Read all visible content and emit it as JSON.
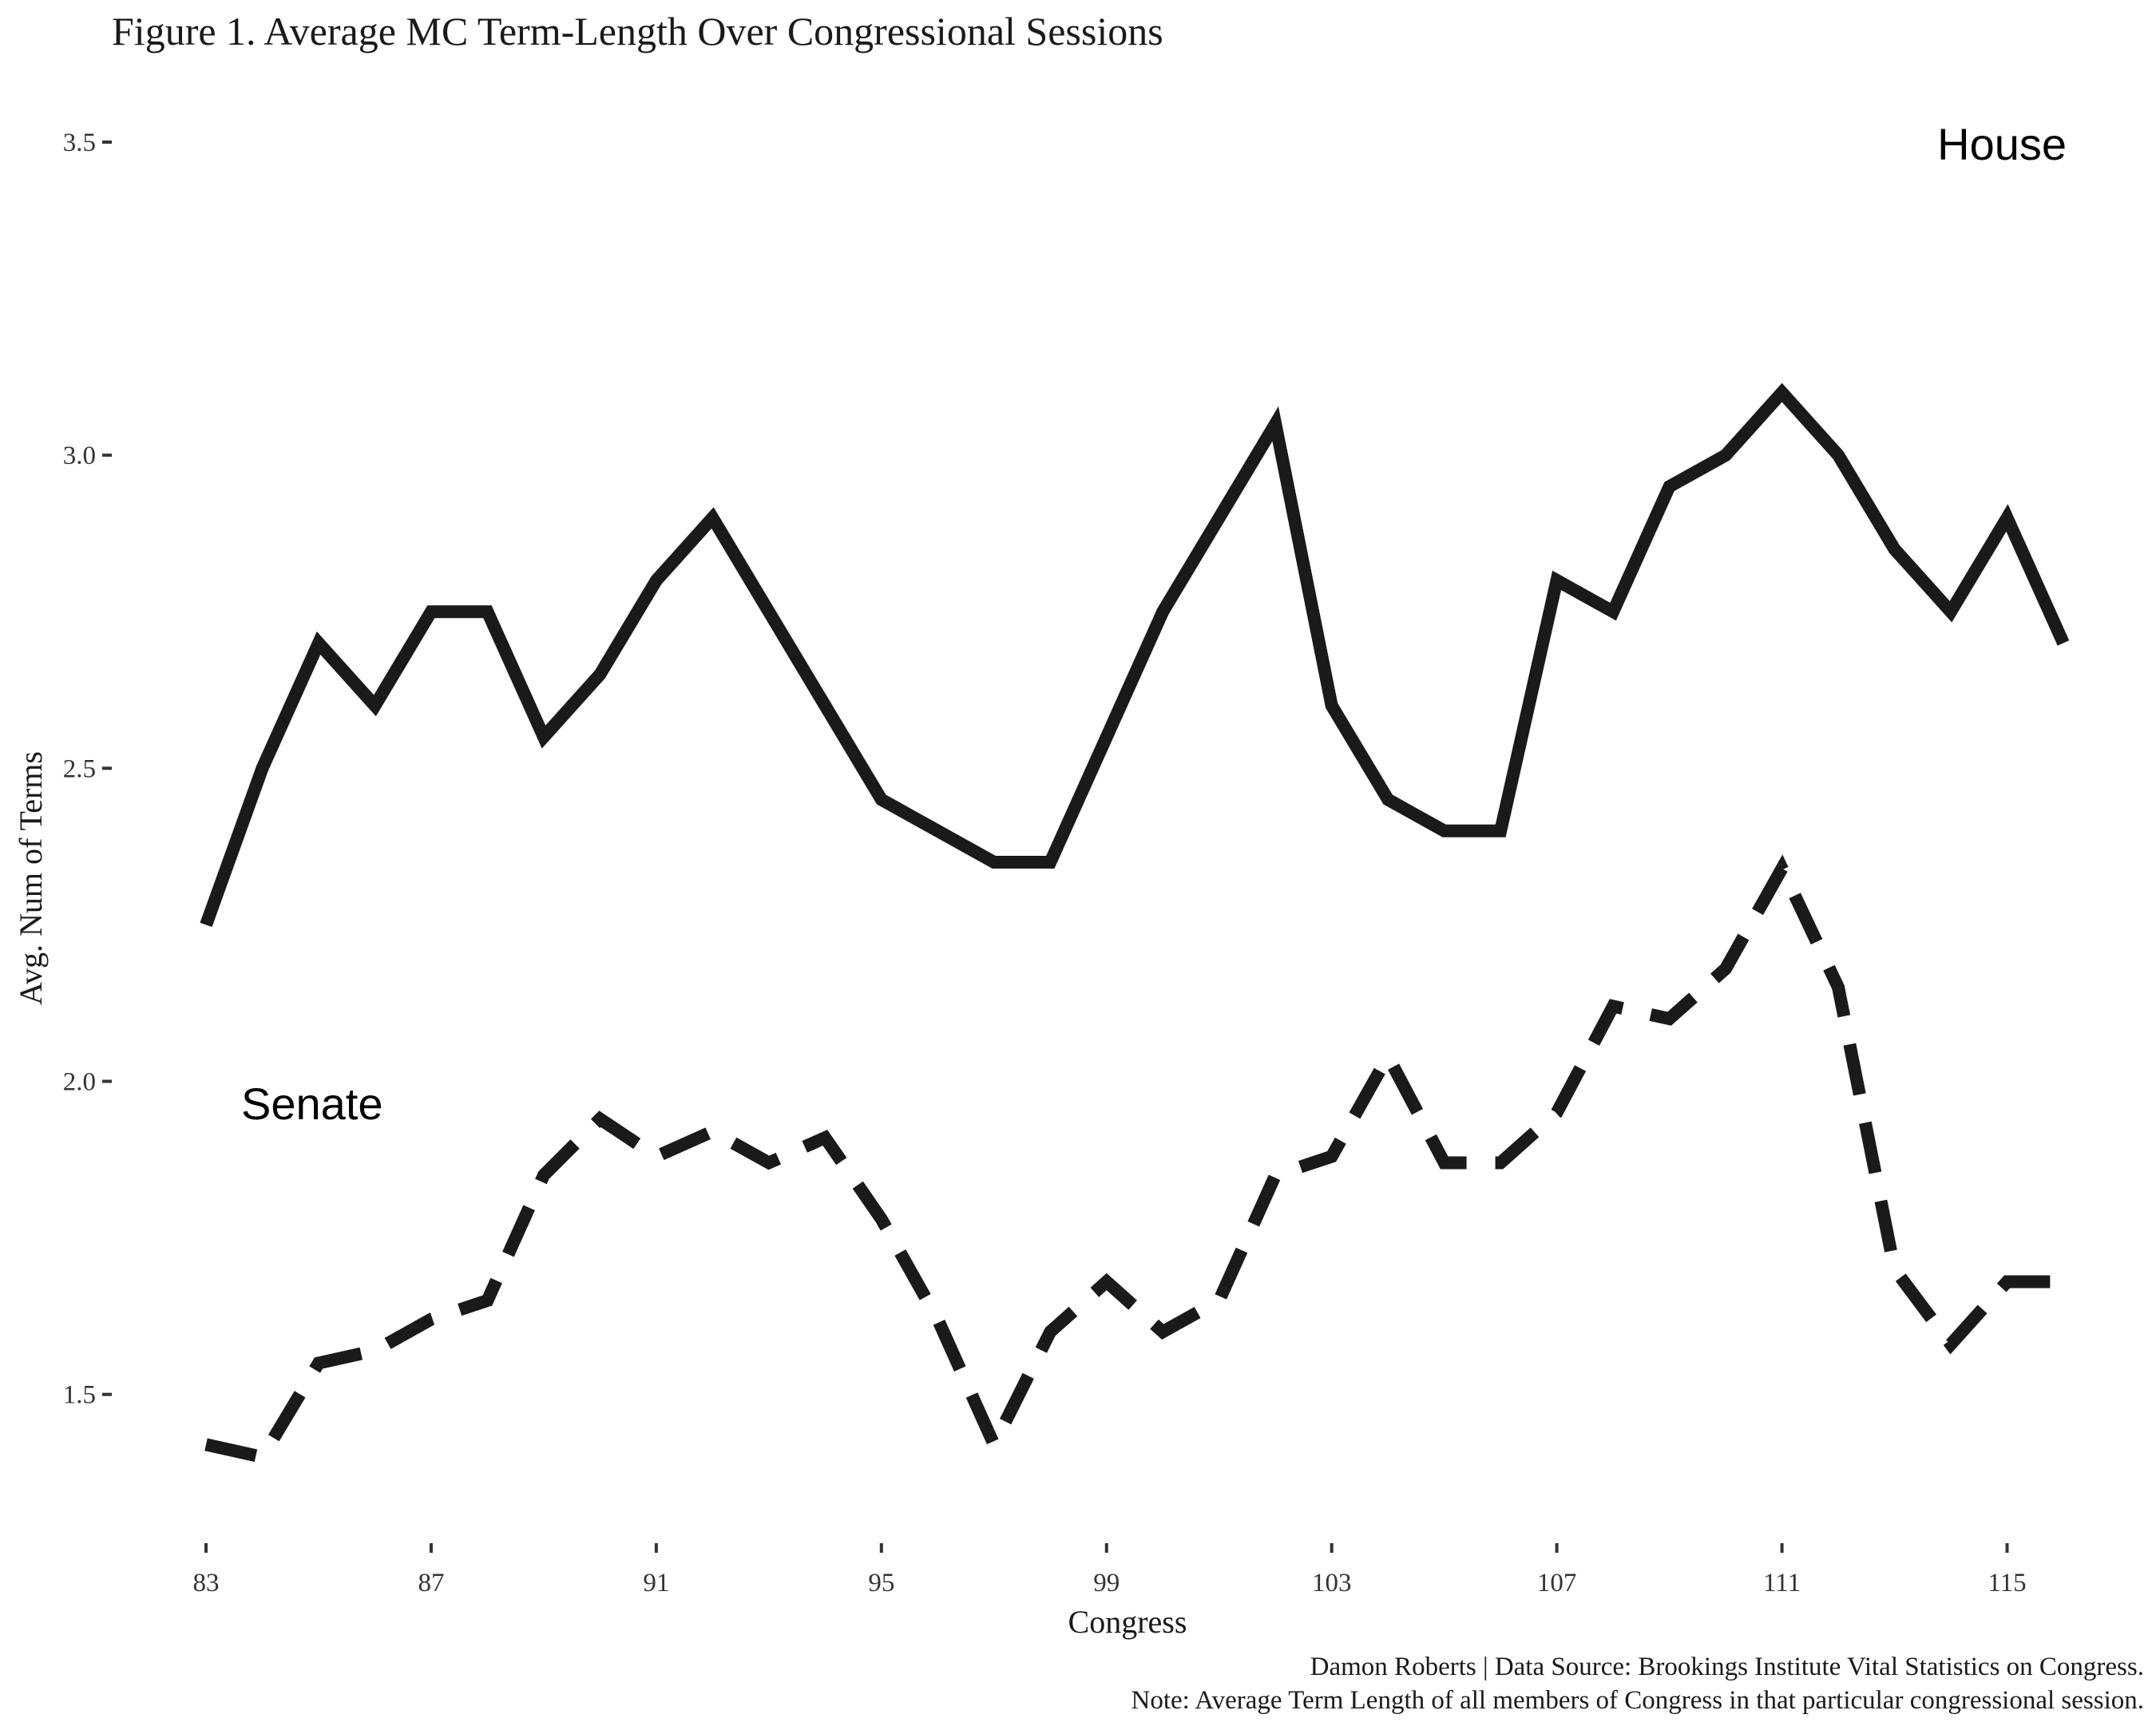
{
  "chart_data": {
    "type": "line",
    "title": "Figure 1. Average MC Term-Length Over Congressional Sessions",
    "xlabel": "Congress",
    "ylabel": "Avg. Num of Terms",
    "x_ticks": [
      83,
      87,
      91,
      95,
      99,
      103,
      107,
      111,
      115
    ],
    "y_ticks": [
      "1.5",
      "2.0",
      "2.5",
      "3.0",
      "3.5"
    ],
    "xlim": [
      83,
      116
    ],
    "ylim": [
      1.33,
      3.5
    ],
    "grid": false,
    "legend": "none",
    "x": [
      83,
      84,
      85,
      86,
      87,
      88,
      89,
      90,
      91,
      92,
      93,
      94,
      95,
      96,
      97,
      98,
      99,
      100,
      101,
      102,
      103,
      104,
      105,
      106,
      107,
      108,
      109,
      110,
      111,
      112,
      113,
      114,
      115,
      116
    ],
    "series": [
      {
        "name": "House",
        "line_style": "solid",
        "color": "#1a1a1a",
        "values": [
          2.25,
          2.5,
          2.7,
          2.6,
          2.75,
          2.75,
          2.55,
          2.65,
          2.8,
          2.9,
          2.75,
          2.6,
          2.45,
          2.4,
          2.35,
          2.35,
          2.55,
          2.75,
          2.9,
          3.05,
          2.6,
          2.45,
          2.4,
          2.4,
          2.8,
          2.75,
          2.95,
          3.0,
          3.1,
          3.0,
          2.85,
          2.75,
          2.9,
          2.7
        ]
      },
      {
        "name": "Senate",
        "line_style": "dashed",
        "color": "#1a1a1a",
        "values": [
          1.42,
          1.4,
          1.55,
          1.57,
          1.62,
          1.65,
          1.85,
          1.94,
          1.88,
          1.92,
          1.87,
          1.91,
          1.78,
          1.62,
          1.42,
          1.6,
          1.68,
          1.6,
          1.65,
          1.85,
          1.88,
          2.04,
          1.87,
          1.87,
          1.95,
          2.12,
          2.1,
          2.18,
          2.34,
          2.15,
          1.7,
          1.58,
          1.68,
          1.68
        ]
      }
    ],
    "annotations": [
      "House",
      "Senate"
    ],
    "caption": [
      "Damon Roberts | Data Source: Brookings Institute Vital Statistics on Congress.",
      "Note: Average Term Length of all members of Congress in that particular congressional session."
    ]
  }
}
